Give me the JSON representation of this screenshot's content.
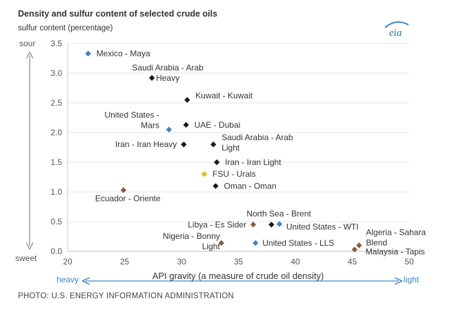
{
  "chart_data": {
    "type": "scatter",
    "title": "Density and sulfur content of selected crude oils",
    "ylabel": "sulfur content (percentage)",
    "xlabel": "API gravity (a measure of crude oil density)",
    "xlim": [
      20,
      50
    ],
    "ylim": [
      0,
      3.5
    ],
    "x_ticks": [
      "20",
      "25",
      "30",
      "35",
      "40",
      "45",
      "50"
    ],
    "y_ticks": [
      "0.0",
      "0.5",
      "1.0",
      "1.5",
      "2.0",
      "2.5",
      "3.0",
      "3.5"
    ],
    "y_top_word": "sour",
    "y_bottom_word": "sweet",
    "x_left_word": "heavy",
    "x_right_word": "light",
    "logo": "eia",
    "colors": {
      "black": "#1a1a1a",
      "blue": "#3a86c8",
      "gold": "#f2b21b",
      "brown": "#8b5a3c"
    },
    "points": [
      {
        "label": "Mexico - Maya",
        "x": 21.8,
        "y": 3.33,
        "color": "blue"
      },
      {
        "label": "Saudi Arabia - Arab Heavy",
        "x": 27.4,
        "y": 2.92,
        "color": "black"
      },
      {
        "label": "Kuwait - Kuwait",
        "x": 30.5,
        "y": 2.55,
        "color": "black"
      },
      {
        "label": "United States - Mars",
        "x": 28.9,
        "y": 2.05,
        "color": "blue"
      },
      {
        "label": "UAE - Dubai",
        "x": 30.4,
        "y": 2.13,
        "color": "black"
      },
      {
        "label": "Iran - Iran Heavy",
        "x": 30.2,
        "y": 1.8,
        "color": "black"
      },
      {
        "label": "Saudi Arabia - Arab Light",
        "x": 32.8,
        "y": 1.8,
        "color": "black"
      },
      {
        "label": "Iran - Iran Light",
        "x": 33.1,
        "y": 1.5,
        "color": "black"
      },
      {
        "label": "FSU - Urals",
        "x": 32.0,
        "y": 1.3,
        "color": "gold"
      },
      {
        "label": "Oman - Oman",
        "x": 33.0,
        "y": 1.1,
        "color": "black"
      },
      {
        "label": "Ecuador - Oriente",
        "x": 24.9,
        "y": 1.03,
        "color": "brown"
      },
      {
        "label": "North Sea - Brent",
        "x": 37.9,
        "y": 0.45,
        "color": "black"
      },
      {
        "label": "Libya - Es Sider",
        "x": 36.3,
        "y": 0.45,
        "color": "brown"
      },
      {
        "label": "United States - WTI",
        "x": 38.6,
        "y": 0.46,
        "color": "blue"
      },
      {
        "label": "Nigeria - Bonny Light",
        "x": 33.5,
        "y": 0.14,
        "color": "brown"
      },
      {
        "label": "United States - LLS",
        "x": 36.5,
        "y": 0.14,
        "color": "blue"
      },
      {
        "label": "Algeria - Sahara Blend",
        "x": 45.6,
        "y": 0.1,
        "color": "brown"
      },
      {
        "label": "Malaysia - Tapis",
        "x": 45.2,
        "y": 0.03,
        "color": "brown"
      }
    ]
  },
  "credit": "PHOTO: U.S. ENERGY INFORMATION ADMINISTRATION"
}
